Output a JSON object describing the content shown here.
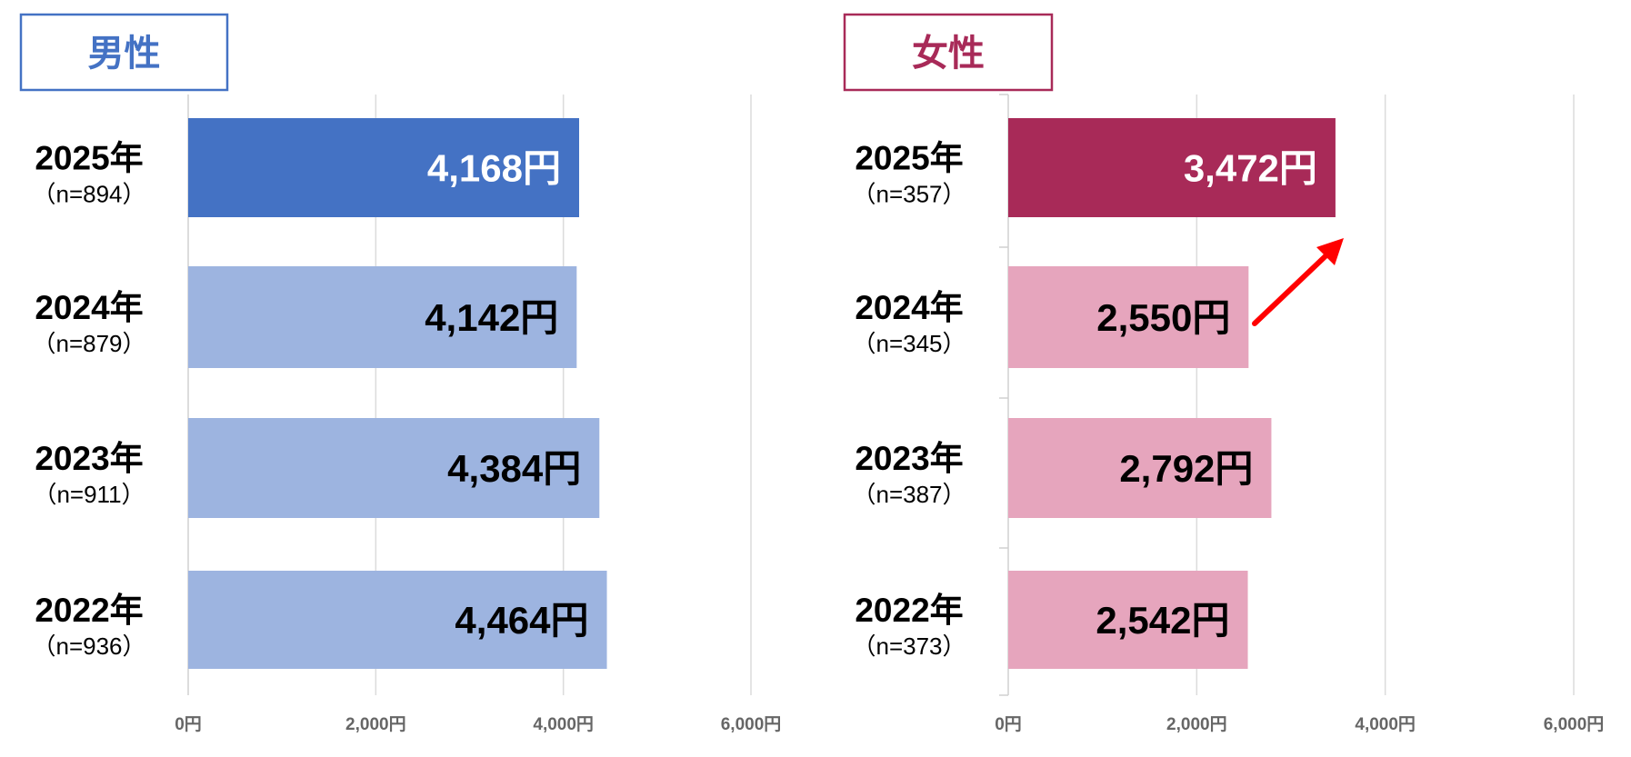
{
  "chart_data": [
    {
      "type": "bar",
      "orientation": "horizontal",
      "title": "男性",
      "title_color": "#4472C4",
      "categories": [
        "2025年",
        "2024年",
        "2023年",
        "2022年"
      ],
      "sample_sizes": [
        "（n=894）",
        "（n=879）",
        "（n=911）",
        "（n=936）"
      ],
      "values": [
        4168,
        4142,
        4384,
        4464
      ],
      "value_labels": [
        "4,168円",
        "4,142円",
        "4,384円",
        "4,464円"
      ],
      "bar_colors": [
        "#4472C4",
        "#9DB4E0",
        "#9DB4E0",
        "#9DB4E0"
      ],
      "label_colors": [
        "#FFFFFF",
        "#000000",
        "#000000",
        "#000000"
      ],
      "xlim": [
        0,
        6000
      ],
      "xticks": [
        0,
        2000,
        4000,
        6000
      ],
      "xtick_labels": [
        "0円",
        "2,000円",
        "4,000円",
        "6,000円"
      ],
      "grid": true
    },
    {
      "type": "bar",
      "orientation": "horizontal",
      "title": "女性",
      "title_color": "#A82A58",
      "categories": [
        "2025年",
        "2024年",
        "2023年",
        "2022年"
      ],
      "sample_sizes": [
        "（n=357）",
        "（n=345）",
        "（n=387）",
        "（n=373）"
      ],
      "values": [
        3472,
        2550,
        2792,
        2542
      ],
      "value_labels": [
        "3,472円",
        "2,550円",
        "2,792円",
        "2,542円"
      ],
      "bar_colors": [
        "#A82A58",
        "#E6A5BD",
        "#E6A5BD",
        "#E6A5BD"
      ],
      "label_colors": [
        "#FFFFFF",
        "#000000",
        "#000000",
        "#000000"
      ],
      "xlim": [
        0,
        6000
      ],
      "xticks": [
        0,
        2000,
        4000,
        6000
      ],
      "xtick_labels": [
        "0円",
        "2,000円",
        "4,000円",
        "6,000円"
      ],
      "grid": true,
      "annotation": {
        "type": "arrow",
        "from_category": "2024年",
        "to_category": "2025年",
        "color": "#FF0000"
      }
    }
  ]
}
